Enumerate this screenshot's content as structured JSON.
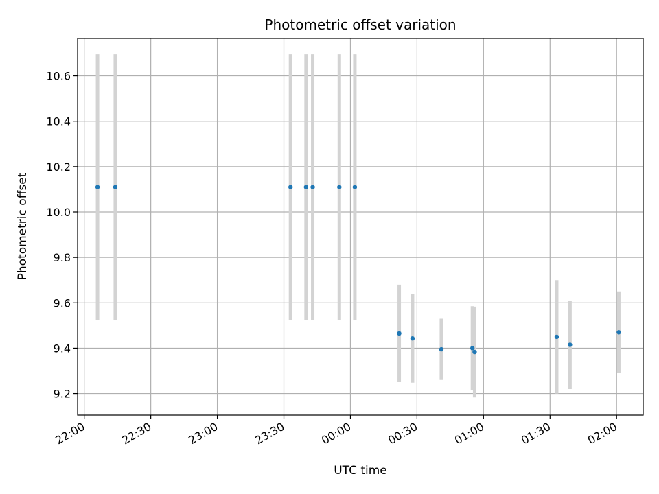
{
  "chart_data": {
    "type": "scatter",
    "title": "Photometric offset variation",
    "xlabel": "UTC time",
    "ylabel": "Photometric offset",
    "x_unit": "UTC",
    "xlim": [
      "21:57",
      "02:12"
    ],
    "ylim": [
      9.105,
      10.765
    ],
    "x_ticks": [
      "22:00",
      "22:30",
      "23:00",
      "23:30",
      "00:00",
      "00:30",
      "01:00",
      "01:30",
      "02:00"
    ],
    "y_ticks": [
      9.2,
      9.4,
      9.6,
      9.8,
      10.0,
      10.2,
      10.4,
      10.6
    ],
    "y_tick_labels": [
      "9.2",
      "9.4",
      "9.6",
      "9.8",
      "10.0",
      "10.2",
      "10.4",
      "10.6"
    ],
    "grid": true,
    "legend": "none",
    "colors": {
      "marker": "#1f77b4",
      "errorbar": "#d3d3d3",
      "grid": "#b0b0b0"
    },
    "points": [
      {
        "x": "22:06",
        "y": 10.11,
        "err": 0.585
      },
      {
        "x": "22:14",
        "y": 10.11,
        "err": 0.585
      },
      {
        "x": "23:33",
        "y": 10.11,
        "err": 0.585
      },
      {
        "x": "23:40",
        "y": 10.11,
        "err": 0.585
      },
      {
        "x": "23:43",
        "y": 10.11,
        "err": 0.585
      },
      {
        "x": "23:55",
        "y": 10.11,
        "err": 0.585
      },
      {
        "x": "00:02",
        "y": 10.11,
        "err": 0.585
      },
      {
        "x": "00:22",
        "y": 9.465,
        "err": 0.215
      },
      {
        "x": "00:28",
        "y": 9.443,
        "err": 0.195
      },
      {
        "x": "00:41",
        "y": 9.395,
        "err": 0.135
      },
      {
        "x": "00:55",
        "y": 9.4,
        "err": 0.185
      },
      {
        "x": "00:56",
        "y": 9.383,
        "err": 0.2
      },
      {
        "x": "01:33",
        "y": 9.45,
        "err": 0.25
      },
      {
        "x": "01:39",
        "y": 9.415,
        "err": 0.195
      },
      {
        "x": "02:01",
        "y": 9.47,
        "err": 0.18
      }
    ]
  }
}
